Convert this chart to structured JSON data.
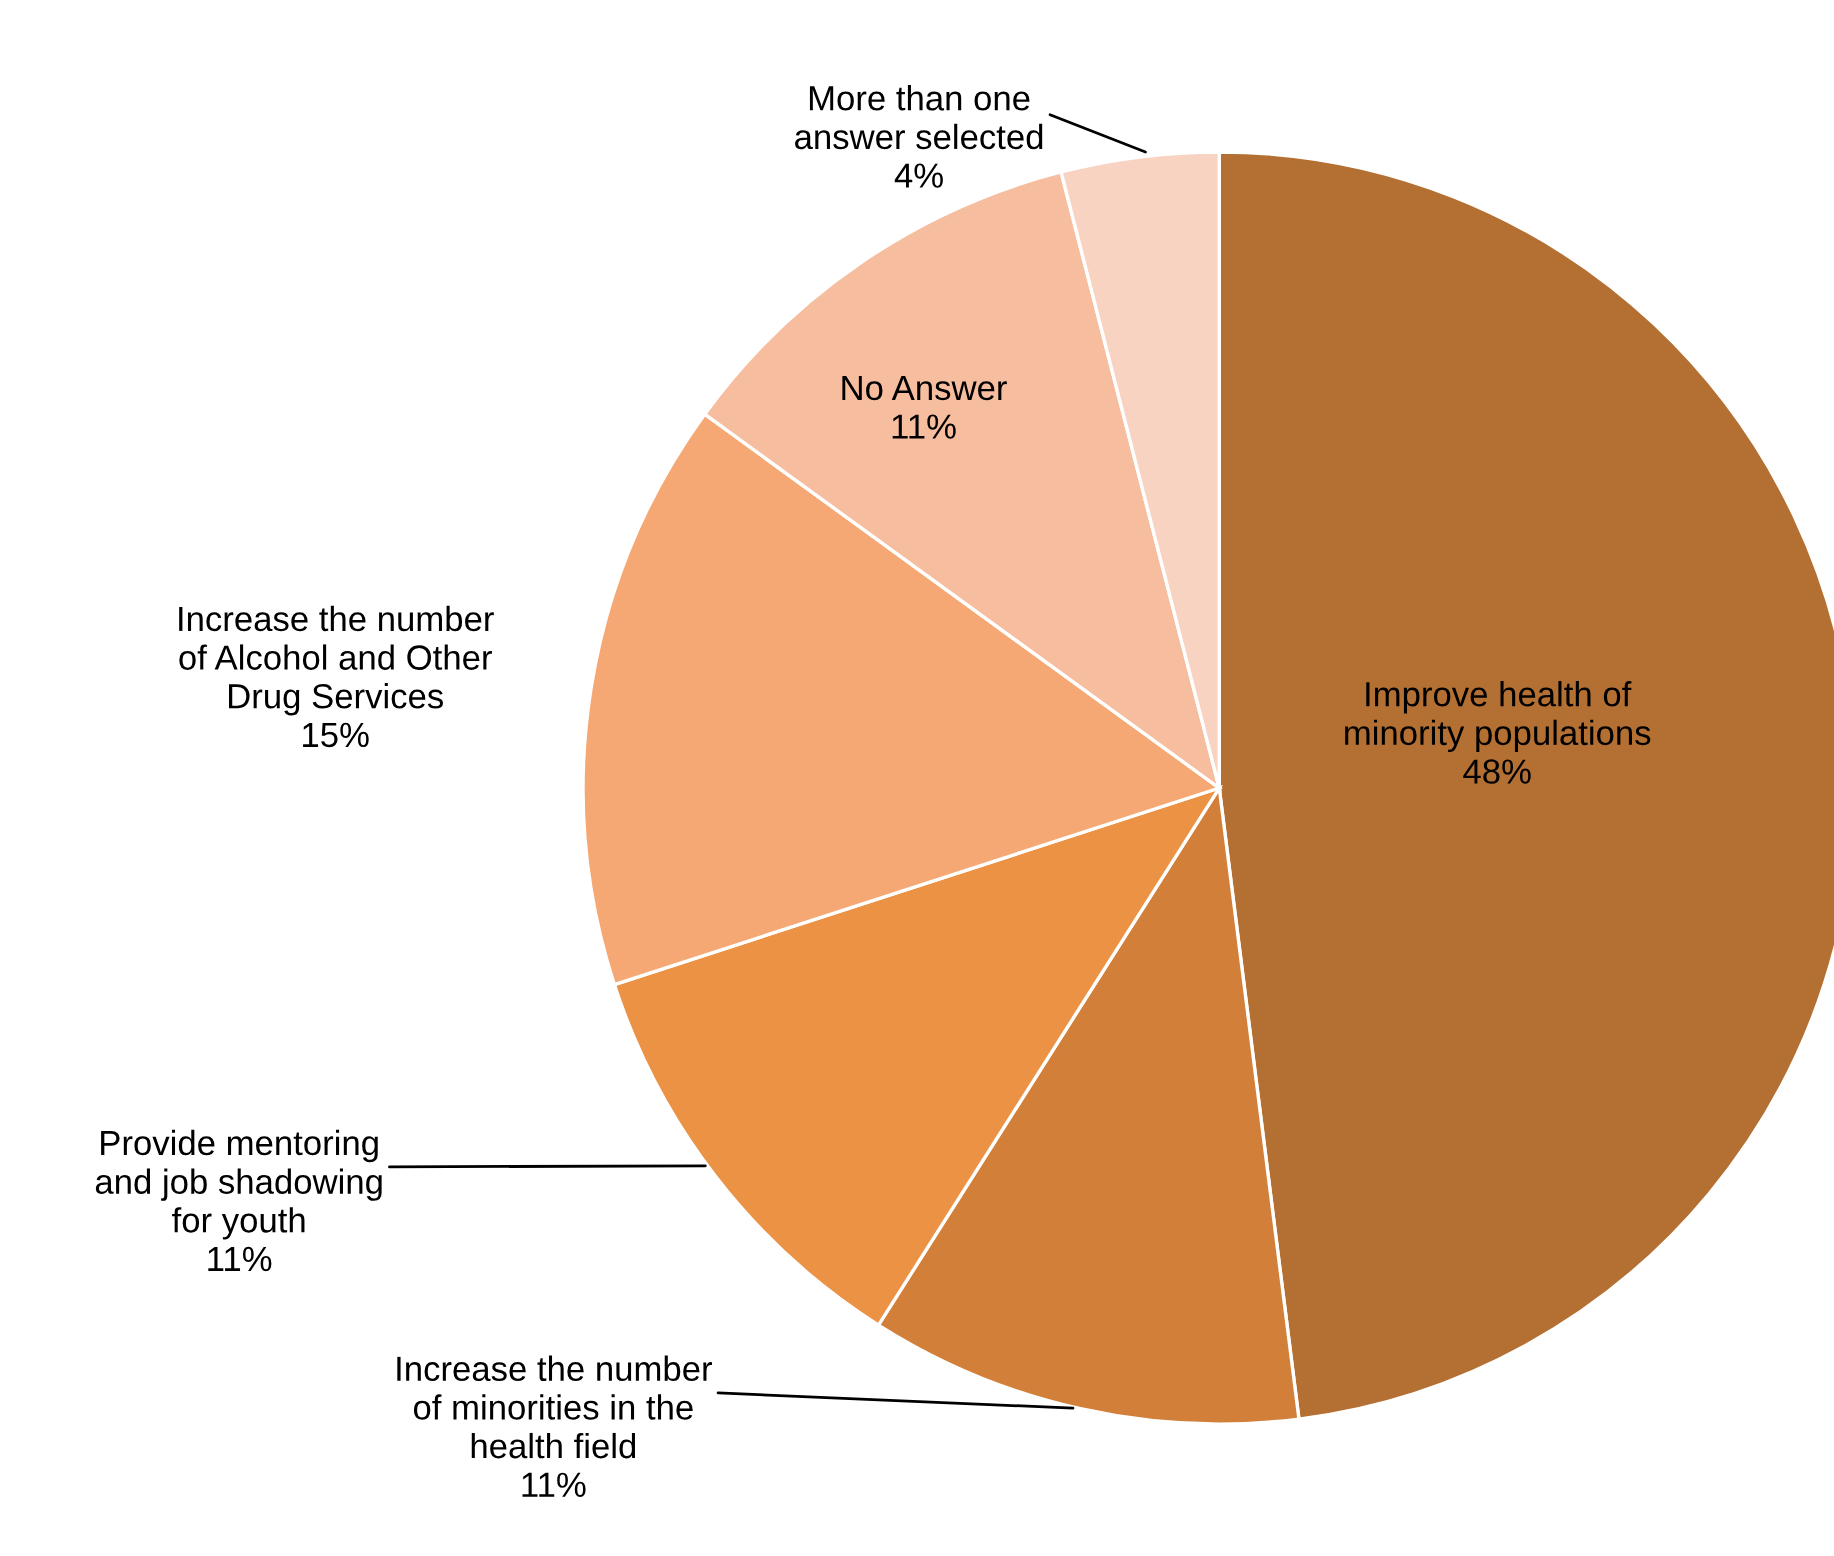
{
  "chart_data": {
    "type": "pie",
    "categories": [
      "Improve health of\nminority populations",
      "Increase the number\nof minorities in the\nhealth field",
      "Provide mentoring\nand job shadowing\nfor youth",
      "Increase the number\nof Alcohol and Other\nDrug Services",
      "No Answer",
      "More than one\nanswer selected"
    ],
    "values": [
      48,
      11,
      11,
      15,
      11,
      4
    ],
    "value_labels": [
      "48%",
      "11%",
      "11%",
      "15%",
      "11%",
      "4%"
    ],
    "colors": [
      "#b46f32",
      "#d27f3a",
      "#eb9244",
      "#f5a873",
      "#f7bd9f",
      "#f9d3c1"
    ],
    "legend": false
  }
}
